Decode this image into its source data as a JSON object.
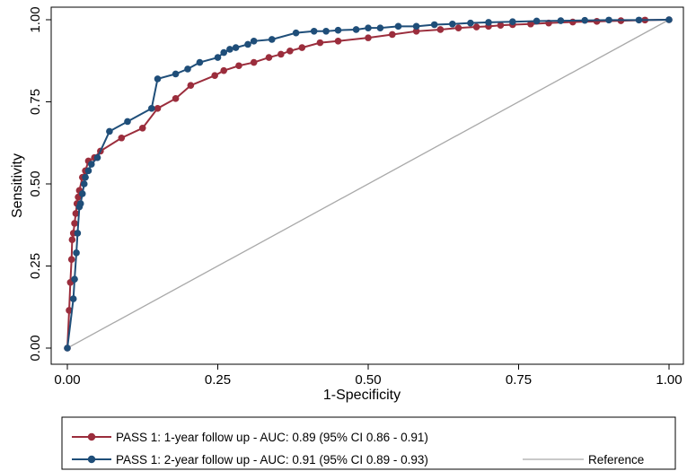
{
  "chart_data": {
    "type": "line",
    "xlabel": "1-Specificity",
    "ylabel": "Sensitivity",
    "xlim": [
      0,
      1
    ],
    "ylim": [
      0,
      1
    ],
    "x_ticks": [
      "0.00",
      "0.25",
      "0.50",
      "0.75",
      "1.00"
    ],
    "y_ticks": [
      "0.00",
      "0.25",
      "0.50",
      "0.75",
      "1.00"
    ],
    "grid": false,
    "legend_position": "bottom",
    "series": [
      {
        "name": "PASS 1: 1-year follow up - AUC: 0.89 (95% CI 0.86 - 0.91)",
        "color": "#9b2d3c",
        "marker": "circle",
        "x": [
          0,
          0.003,
          0.005,
          0.007,
          0.008,
          0.01,
          0.012,
          0.014,
          0.016,
          0.018,
          0.02,
          0.025,
          0.03,
          0.035,
          0.045,
          0.055,
          0.09,
          0.125,
          0.15,
          0.18,
          0.205,
          0.245,
          0.26,
          0.285,
          0.31,
          0.335,
          0.355,
          0.37,
          0.39,
          0.42,
          0.45,
          0.5,
          0.54,
          0.58,
          0.62,
          0.65,
          0.68,
          0.7,
          0.72,
          0.74,
          0.77,
          0.8,
          0.84,
          0.88,
          0.92,
          0.96,
          1.0
        ],
        "y": [
          0,
          0.115,
          0.2,
          0.27,
          0.33,
          0.35,
          0.38,
          0.41,
          0.44,
          0.46,
          0.48,
          0.52,
          0.54,
          0.57,
          0.58,
          0.6,
          0.64,
          0.67,
          0.73,
          0.76,
          0.8,
          0.83,
          0.845,
          0.86,
          0.87,
          0.885,
          0.895,
          0.905,
          0.915,
          0.93,
          0.935,
          0.945,
          0.955,
          0.965,
          0.97,
          0.975,
          0.978,
          0.98,
          0.983,
          0.985,
          0.987,
          0.99,
          0.993,
          0.995,
          0.997,
          0.999,
          1.0
        ]
      },
      {
        "name": "PASS 1: 2-year follow up - AUC: 0.91 (95% CI 0.89 - 0.93)",
        "color": "#1f4e79",
        "marker": "circle",
        "x": [
          0,
          0.01,
          0.012,
          0.015,
          0.017,
          0.02,
          0.022,
          0.025,
          0.028,
          0.03,
          0.035,
          0.04,
          0.05,
          0.07,
          0.1,
          0.14,
          0.15,
          0.18,
          0.2,
          0.22,
          0.25,
          0.26,
          0.27,
          0.28,
          0.3,
          0.31,
          0.34,
          0.38,
          0.41,
          0.43,
          0.45,
          0.48,
          0.5,
          0.52,
          0.55,
          0.58,
          0.61,
          0.64,
          0.67,
          0.7,
          0.74,
          0.78,
          0.82,
          0.86,
          0.9,
          0.95,
          1.0
        ],
        "y": [
          0,
          0.15,
          0.21,
          0.29,
          0.35,
          0.43,
          0.44,
          0.47,
          0.5,
          0.52,
          0.54,
          0.56,
          0.58,
          0.66,
          0.69,
          0.73,
          0.82,
          0.835,
          0.85,
          0.87,
          0.885,
          0.9,
          0.91,
          0.915,
          0.925,
          0.935,
          0.94,
          0.96,
          0.965,
          0.965,
          0.968,
          0.97,
          0.975,
          0.975,
          0.98,
          0.98,
          0.985,
          0.987,
          0.99,
          0.992,
          0.994,
          0.996,
          0.997,
          0.998,
          0.999,
          0.999,
          1.0
        ]
      },
      {
        "name": "Reference",
        "color": "#a9a9a9",
        "marker": "none",
        "x": [
          0,
          1
        ],
        "y": [
          0,
          1
        ]
      }
    ]
  }
}
